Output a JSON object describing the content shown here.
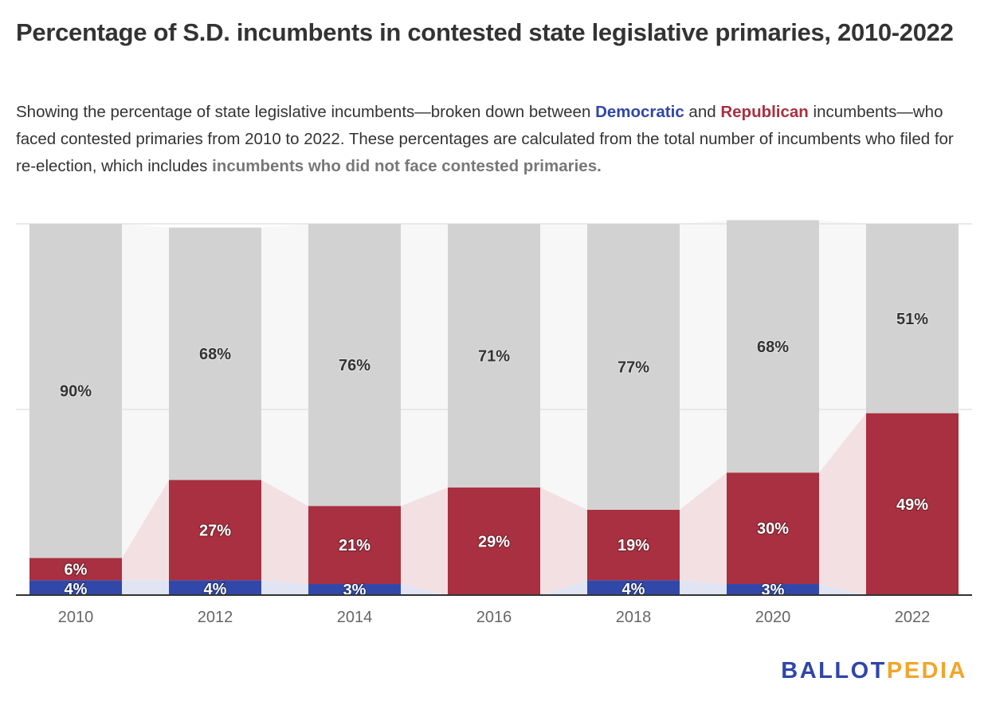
{
  "header": {
    "title": "Percentage of S.D. incumbents in contested state legislative primaries, 2010-2022",
    "description": {
      "part1": "Showing the percentage of state legislative incumbents—broken down between ",
      "democratic": "Democratic",
      "part2": " and ",
      "republican": "Republican",
      "part3": " incumbents—who faced contested primaries from 2010 to 2022. These percentages are calculated from the total number of incumbents who filed for re-election, which includes ",
      "uncontested": "incumbents who did not face contested primaries.",
      "part4": ""
    }
  },
  "colors": {
    "democratic": "#3248a8",
    "republican": "#a83040",
    "uncontested": "#d2d2d2",
    "democratic_area": "#e1e5f3",
    "republican_area": "#f3e0e2",
    "uncontested_area": "#f7f7f7",
    "brand_blue": "#2f46a8",
    "brand_orange": "#f2a52c"
  },
  "logo": {
    "part1": "BALLOT",
    "part2": "PEDIA"
  },
  "chart_data": {
    "type": "bar",
    "stacked": true,
    "title": "Percentage of S.D. incumbents in contested state legislative primaries, 2010-2022",
    "xlabel": "",
    "ylabel": "",
    "ylim": [
      0,
      100
    ],
    "grid": true,
    "gridlines": [
      50,
      100
    ],
    "connector_areas": true,
    "categories": [
      "2010",
      "2012",
      "2014",
      "2016",
      "2018",
      "2020",
      "2022"
    ],
    "series": [
      {
        "name": "Democratic",
        "key": "democratic",
        "values": [
          4,
          4,
          3,
          0,
          4,
          3,
          0
        ],
        "labels": [
          "4%",
          "4%",
          "3%",
          "",
          "4%",
          "3%",
          ""
        ]
      },
      {
        "name": "Republican",
        "key": "republican",
        "values": [
          6,
          27,
          21,
          29,
          19,
          30,
          49
        ],
        "labels": [
          "6%",
          "27%",
          "21%",
          "29%",
          "19%",
          "30%",
          "49%"
        ]
      },
      {
        "name": "Uncontested",
        "key": "uncontested",
        "values": [
          90,
          68,
          76,
          71,
          77,
          68,
          51
        ],
        "labels": [
          "90%",
          "68%",
          "76%",
          "71%",
          "77%",
          "68%",
          "51%"
        ]
      }
    ]
  }
}
